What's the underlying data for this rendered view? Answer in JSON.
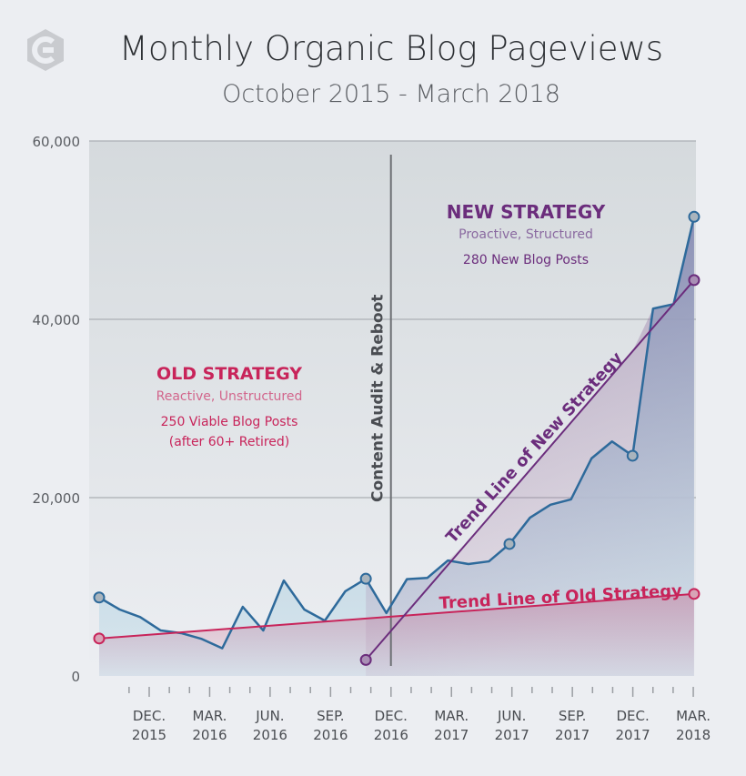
{
  "chart_data": {
    "type": "line",
    "title": "Monthly Organic Blog Pageviews",
    "subtitle": "October 2015 - March 2018",
    "xlabel": "",
    "ylabel": "",
    "ylim": [
      0,
      60000
    ],
    "yticks": [
      "0",
      "20,000",
      "40,000",
      "60,000"
    ],
    "ytick_values": [
      0,
      20000,
      40000,
      60000
    ],
    "x": [
      "Oct 2015",
      "Nov 2015",
      "Dec 2015",
      "Jan 2016",
      "Feb 2016",
      "Mar 2016",
      "Apr 2016",
      "May 2016",
      "Jun 2016",
      "Jul 2016",
      "Aug 2016",
      "Sep 2016",
      "Oct 2016",
      "Nov 2016",
      "Dec 2016",
      "Jan 2017",
      "Feb 2017",
      "Mar 2017",
      "Apr 2017",
      "May 2017",
      "Jun 2017",
      "Jul 2017",
      "Aug 2017",
      "Sep 2017",
      "Oct 2017",
      "Nov 2017",
      "Dec 2017",
      "Jan 2018",
      "Feb 2018",
      "Mar 2018"
    ],
    "xticks": [
      {
        "index": 2,
        "line1": "DEC.",
        "line2": "2015"
      },
      {
        "index": 5,
        "line1": "MAR.",
        "line2": "2016"
      },
      {
        "index": 8,
        "line1": "JUN.",
        "line2": "2016"
      },
      {
        "index": 11,
        "line1": "SEP.",
        "line2": "2016"
      },
      {
        "index": 14,
        "line1": "DEC.",
        "line2": "2016"
      },
      {
        "index": 17,
        "line1": "MAR.",
        "line2": "2017"
      },
      {
        "index": 20,
        "line1": "JUN.",
        "line2": "2017"
      },
      {
        "index": 23,
        "line1": "SEP.",
        "line2": "2017"
      },
      {
        "index": 26,
        "line1": "DEC.",
        "line2": "2017"
      },
      {
        "index": 29,
        "line1": "MAR.",
        "line2": "2018"
      }
    ],
    "series": [
      {
        "name": "Pageviews",
        "color": "#2e6a9b",
        "values": [
          8800,
          7450,
          6600,
          5100,
          4800,
          4150,
          3100,
          7750,
          5100,
          10700,
          7450,
          6200,
          9500,
          10900,
          7050,
          10850,
          11000,
          12950,
          12550,
          12850,
          14800,
          17750,
          19200,
          19800,
          24400,
          26300,
          24700,
          41200,
          41700,
          51500
        ],
        "markers": [
          0,
          13,
          20,
          26,
          29
        ]
      },
      {
        "name": "Trend Line of Old Strategy",
        "color": "#c8245a",
        "from": 0,
        "to": 29,
        "start": 4200,
        "end": 9200
      },
      {
        "name": "Trend Line of New Strategy",
        "color": "#6b2d7c",
        "from": 13,
        "to": 29,
        "start": 1800,
        "end": 44400
      }
    ],
    "event": {
      "index": 14,
      "label": "Content Audit & Reboot"
    },
    "annotations": {
      "old": {
        "heading": "OLD STRATEGY",
        "sub": "Reactive, Unstructured",
        "line1": "250 Viable Blog Posts",
        "line2": "(after 60+ Retired)",
        "color": "#c8245a"
      },
      "new": {
        "heading": "NEW STRATEGY",
        "sub": "Proactive, Structured",
        "line1": "280 New Blog Posts",
        "color": "#6b2d7c"
      }
    },
    "grid": true,
    "legend": "none"
  }
}
